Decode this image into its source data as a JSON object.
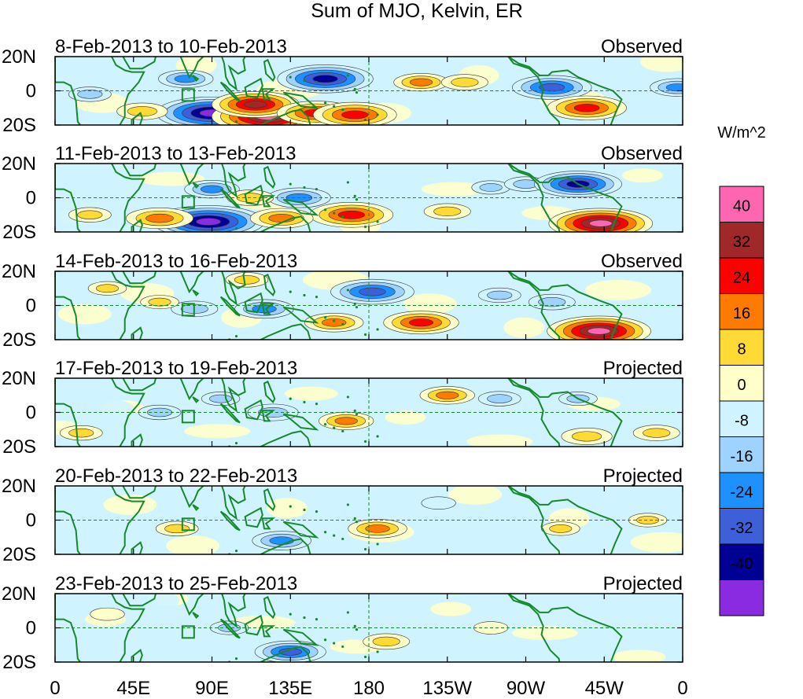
{
  "chart_data": {
    "type": "heatmap",
    "title": "Sum of MJO, Kelvin, ER",
    "colorbar": {
      "units": "W/m^2",
      "tick_labels": [
        "40",
        "32",
        "24",
        "16",
        "8",
        "0",
        "-8",
        "-16",
        "-24",
        "-32",
        "-40"
      ],
      "levels": [
        -40,
        -32,
        -24,
        -16,
        -8,
        0,
        8,
        16,
        24,
        32,
        40
      ],
      "colors_top_to_bottom": [
        "#ff66b2",
        "#a02828",
        "#ff0000",
        "#ff7b00",
        "#ffd934",
        "#ffffca",
        "#cff4ff",
        "#9fd3ff",
        "#1e90ff",
        "#3d5fd8",
        "#000095",
        "#8a2be2"
      ]
    },
    "lon_ticks": [
      "0",
      "45E",
      "90E",
      "135E",
      "180",
      "135W",
      "90W",
      "45W",
      "0"
    ],
    "lat_ticks": [
      "20N",
      "0",
      "20S"
    ],
    "panels": [
      {
        "period": "8-Feb-2013 to 10-Feb-2013",
        "status": "Observed",
        "anomalies": [
          [
            90,
            -13,
            -44
          ],
          [
            122,
            -15,
            44
          ],
          [
            115,
            -8,
            32
          ],
          [
            150,
            -13,
            28
          ],
          [
            172,
            -14,
            30
          ],
          [
            155,
            7,
            -36
          ],
          [
            210,
            5,
            16
          ],
          [
            235,
            5,
            12
          ],
          [
            285,
            2,
            -28
          ],
          [
            305,
            -10,
            28
          ],
          [
            75,
            7,
            -16
          ],
          [
            50,
            -12,
            14
          ],
          [
            357,
            2,
            -16
          ],
          [
            20,
            -2,
            -10
          ]
        ]
      },
      {
        "period": "11-Feb-2013 to 13-Feb-2013",
        "status": "Observed",
        "anomalies": [
          [
            88,
            -14,
            -44
          ],
          [
            60,
            -12,
            22
          ],
          [
            90,
            5,
            -16
          ],
          [
            140,
            0,
            -20
          ],
          [
            170,
            -10,
            30
          ],
          [
            130,
            -12,
            20
          ],
          [
            225,
            -8,
            12
          ],
          [
            250,
            6,
            -8
          ],
          [
            270,
            8,
            -10
          ],
          [
            300,
            8,
            -32
          ],
          [
            313,
            -15,
            40
          ],
          [
            112,
            0,
            12
          ],
          [
            20,
            -10,
            10
          ]
        ]
      },
      {
        "period": "14-Feb-2013 to 16-Feb-2013",
        "status": "Observed",
        "anomalies": [
          [
            312,
            -15,
            40
          ],
          [
            210,
            -10,
            26
          ],
          [
            160,
            -10,
            18
          ],
          [
            182,
            8,
            -30
          ],
          [
            120,
            -2,
            -18
          ],
          [
            110,
            15,
            10
          ],
          [
            80,
            -2,
            -12
          ],
          [
            60,
            2,
            8
          ],
          [
            255,
            6,
            -10
          ],
          [
            285,
            2,
            -12
          ],
          [
            30,
            10,
            8
          ]
        ]
      },
      {
        "period": "17-Feb-2013 to 19-Feb-2013",
        "status": "Projected",
        "anomalies": [
          [
            167,
            -5,
            16
          ],
          [
            125,
            0,
            -14
          ],
          [
            225,
            10,
            16
          ],
          [
            255,
            8,
            -10
          ],
          [
            305,
            -14,
            14
          ],
          [
            60,
            0,
            -10
          ],
          [
            15,
            -12,
            10
          ],
          [
            95,
            8,
            -8
          ],
          [
            345,
            -12,
            12
          ],
          [
            300,
            8,
            -8
          ]
        ]
      },
      {
        "period": "20-Feb-2013 to 22-Feb-2013",
        "status": "Projected",
        "anomalies": [
          [
            185,
            -5,
            18
          ],
          [
            130,
            -12,
            -18
          ],
          [
            70,
            -5,
            10
          ],
          [
            220,
            10,
            -6
          ],
          [
            290,
            -5,
            8
          ],
          [
            340,
            0,
            8
          ]
        ]
      },
      {
        "period": "23-Feb-2013 to 25-Feb-2013",
        "status": "Projected",
        "anomalies": [
          [
            135,
            -14,
            -24
          ],
          [
            190,
            -8,
            12
          ],
          [
            100,
            0,
            -8
          ],
          [
            250,
            0,
            6
          ],
          [
            30,
            8,
            6
          ]
        ]
      }
    ]
  }
}
